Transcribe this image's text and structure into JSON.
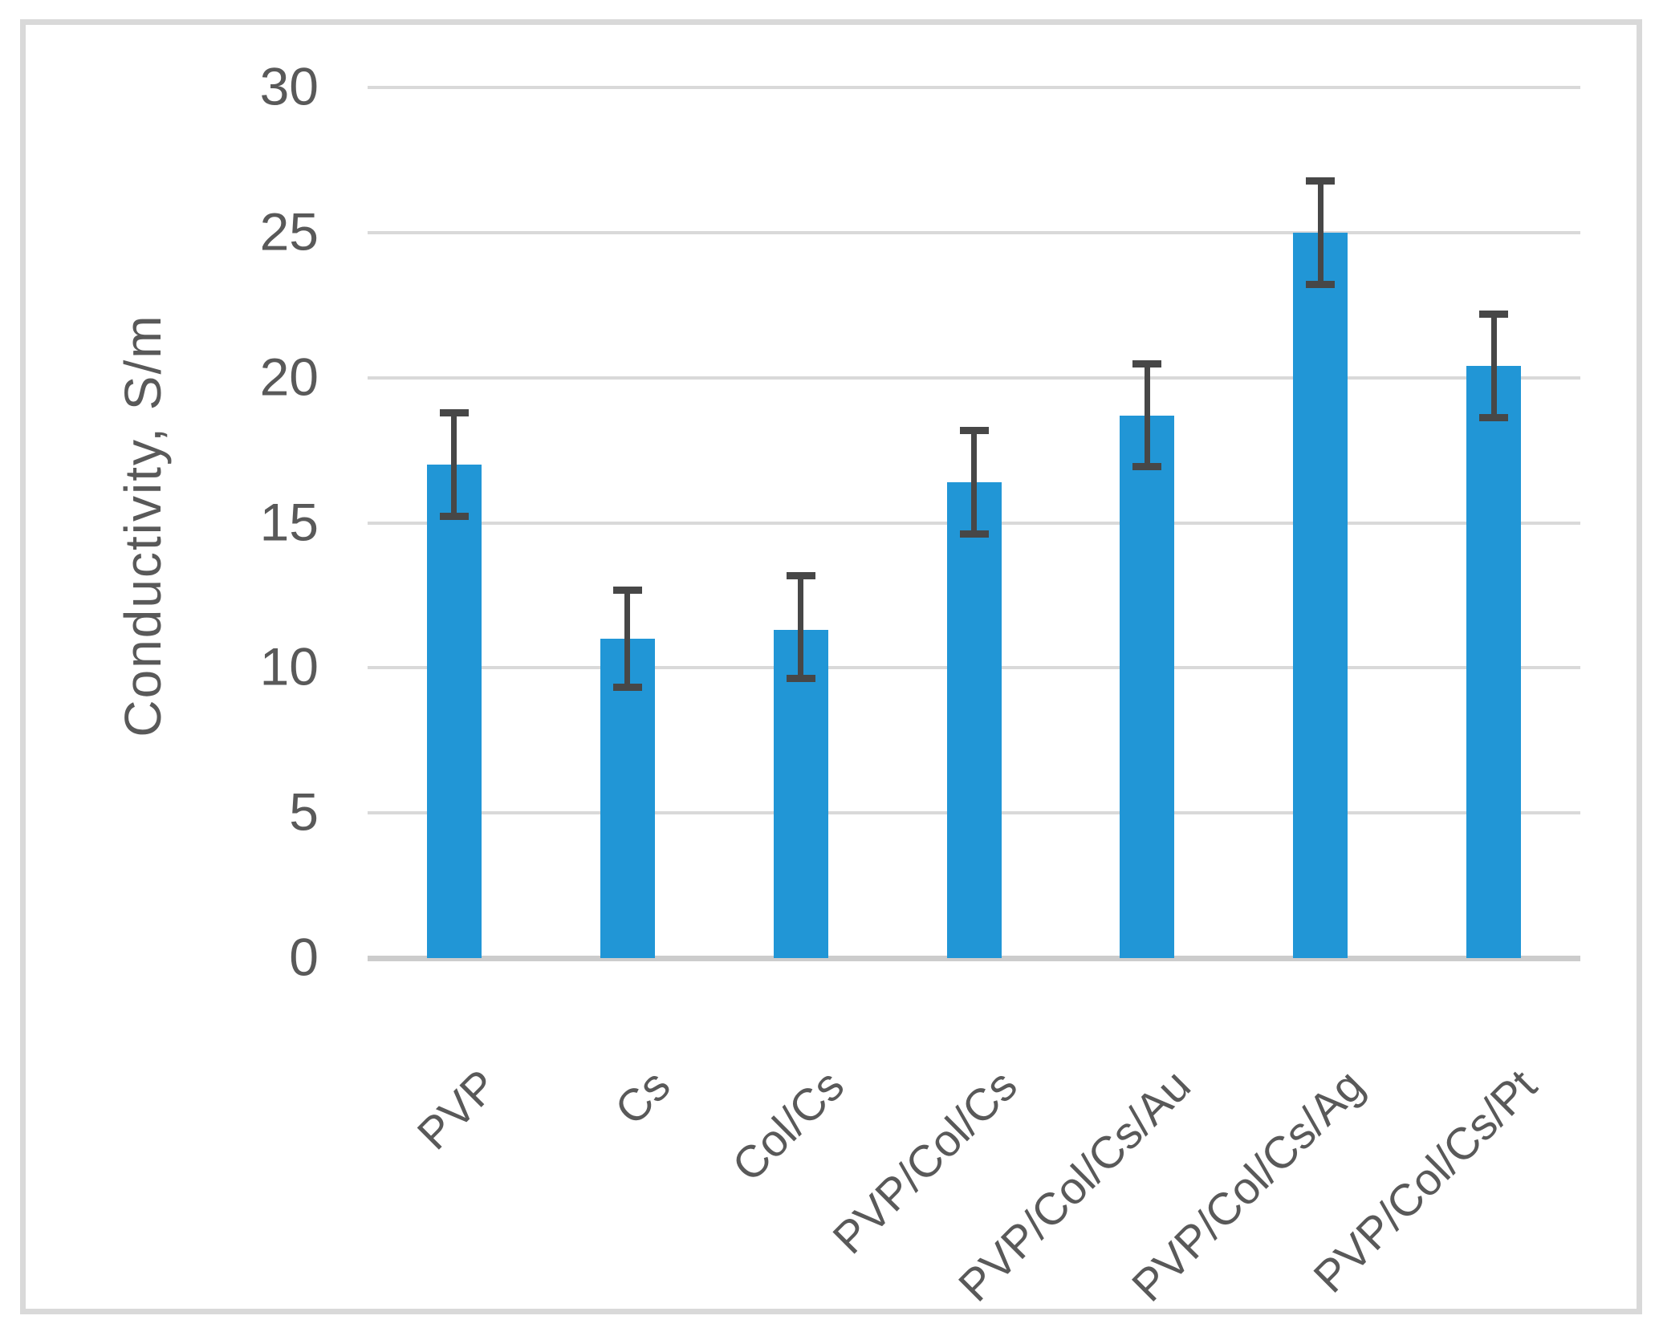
{
  "figure": {
    "background": "#ffffff",
    "border_color": "#d9d9d9"
  },
  "chart_data": {
    "type": "bar",
    "title": "",
    "xlabel": "",
    "ylabel": "Conductivity, S/m",
    "categories": [
      "PVP",
      "Cs",
      "Col/Cs",
      "PVP/Col/Cs",
      "PVP/Col/Cs/Au",
      "PVP/Col/Cs/Ag",
      "PVP/Col/Cs/Pt"
    ],
    "values": [
      17.0,
      11.0,
      11.3,
      16.4,
      18.7,
      25.0,
      20.4
    ],
    "error_low": [
      15.1,
      9.2,
      9.5,
      14.5,
      16.8,
      23.1,
      18.5
    ],
    "error_high": [
      18.9,
      12.8,
      13.3,
      18.3,
      20.6,
      26.9,
      22.3
    ],
    "yticks": [
      0,
      5,
      10,
      15,
      20,
      25,
      30
    ],
    "ylim": [
      0,
      30
    ],
    "grid": true,
    "legend": "none",
    "bar_color": "#2196d6",
    "error_color": "#474747",
    "gridline_color": "#d9d9d9",
    "axis_line_color": "#cccccc",
    "text_color": "#595959"
  }
}
